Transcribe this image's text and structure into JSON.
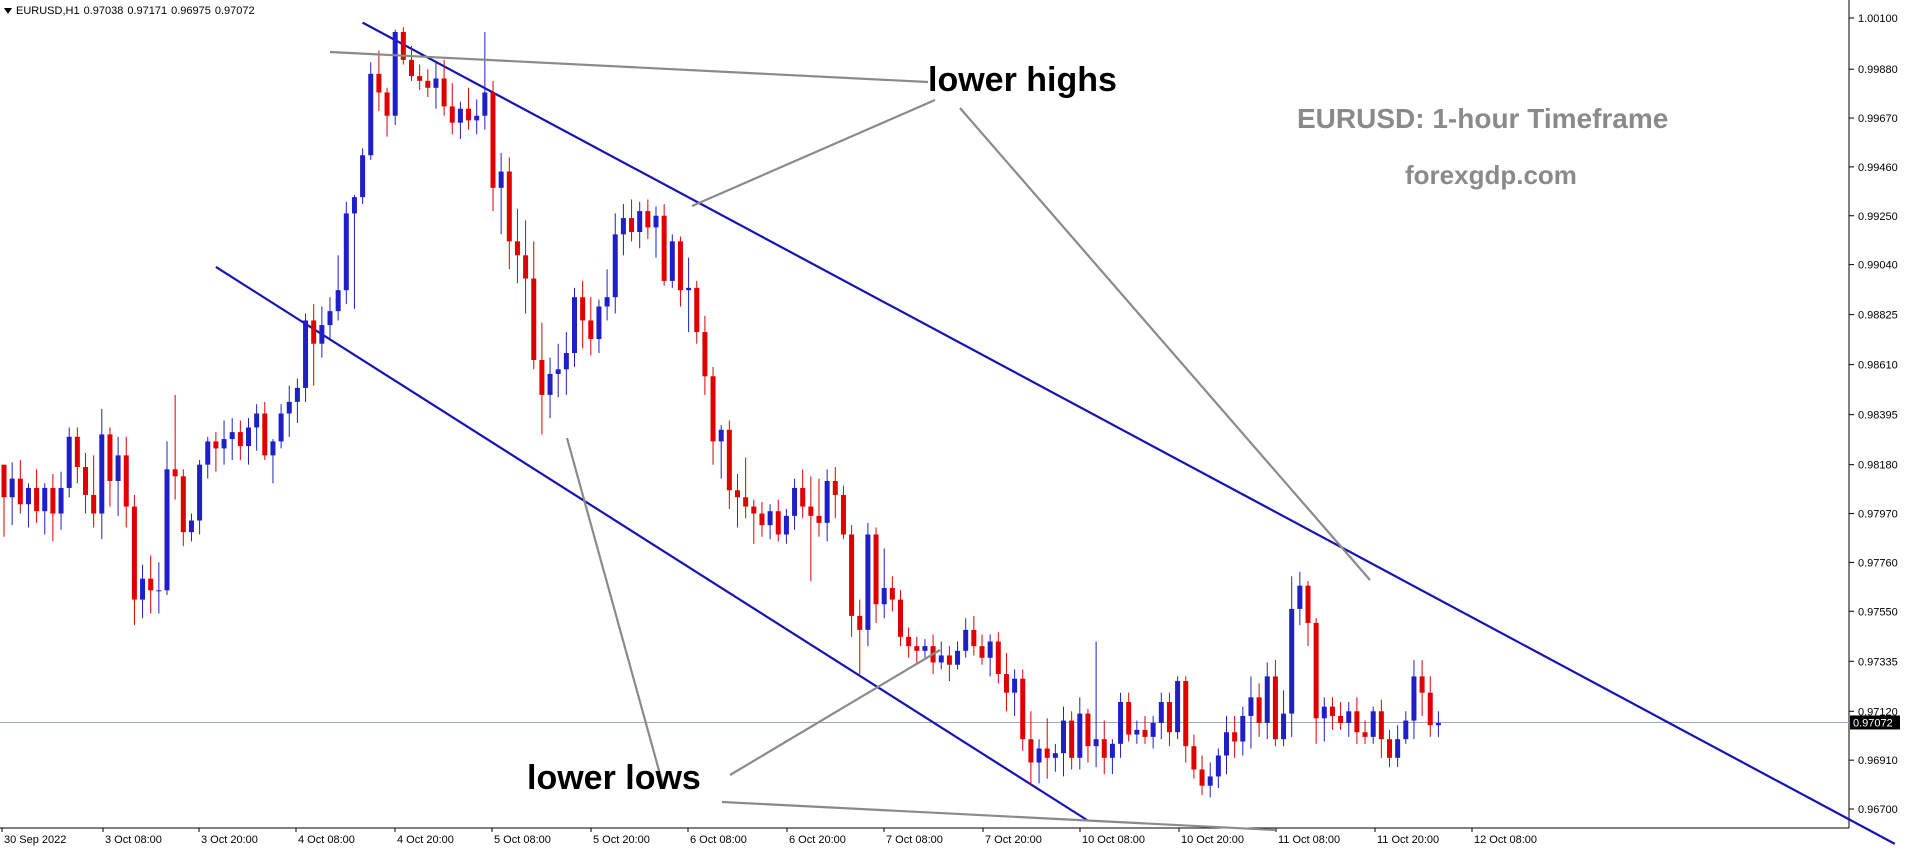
{
  "header": {
    "symbol": "EURUSD,H1",
    "open": "0.97038",
    "high": "0.97171",
    "low": "0.96975",
    "close": "0.97072"
  },
  "annotations": {
    "title": "EURUSD: 1-hour Timeframe",
    "site": "forexgdp.com",
    "lower_highs": "lower highs",
    "lower_lows": "lower lows"
  },
  "colors": {
    "bull": "#1f1fc8",
    "bear": "#e00000",
    "channel": "#1414b4",
    "pointer": "#8c8c8c",
    "grid_text": "#000000",
    "price_line": "#a0a8c0",
    "annotation_gray": "#8a8a8a"
  },
  "chart_data": {
    "type": "candlestick",
    "title": "EURUSD: 1-hour Timeframe",
    "symbol": "EURUSD",
    "timeframe": "H1",
    "current_price": 0.97072,
    "current_price_label": "0.97072",
    "y_ticks": [
      1.001,
      0.9988,
      0.9967,
      0.9946,
      0.9925,
      0.9904,
      0.98825,
      0.9861,
      0.98395,
      0.9818,
      0.9797,
      0.9776,
      0.9755,
      0.97335,
      0.9712,
      0.9691,
      0.967
    ],
    "y_tick_labels": [
      "1.00100",
      "0.99880",
      "0.99670",
      "0.99460",
      "0.99250",
      "0.99040",
      "0.98825",
      "0.98610",
      "0.98395",
      "0.98180",
      "0.97970",
      "0.97760",
      "0.97550",
      "0.97335",
      "0.97120",
      "0.96910",
      "0.96700"
    ],
    "x_tick_labels": [
      "30 Sep 2022",
      "3 Oct 08:00",
      "3 Oct 20:00",
      "4 Oct 08:00",
      "4 Oct 20:00",
      "5 Oct 08:00",
      "5 Oct 20:00",
      "6 Oct 08:00",
      "6 Oct 20:00",
      "7 Oct 08:00",
      "7 Oct 20:00",
      "10 Oct 08:00",
      "10 Oct 20:00",
      "11 Oct 08:00",
      "11 Oct 20:00",
      "12 Oct 08:00"
    ],
    "grid": false,
    "candles": [
      [
        0.9818,
        0.9816,
        0.9787,
        0.9804
      ],
      [
        0.9804,
        0.9819,
        0.9792,
        0.9812
      ],
      [
        0.9812,
        0.982,
        0.9797,
        0.9801
      ],
      [
        0.9801,
        0.981,
        0.9791,
        0.9808
      ],
      [
        0.9808,
        0.9816,
        0.9793,
        0.9798
      ],
      [
        0.9798,
        0.981,
        0.9788,
        0.9808
      ],
      [
        0.9808,
        0.9814,
        0.9785,
        0.9797
      ],
      [
        0.9797,
        0.9815,
        0.979,
        0.9808
      ],
      [
        0.9808,
        0.9834,
        0.9804,
        0.983
      ],
      [
        0.983,
        0.9834,
        0.981,
        0.9817
      ],
      [
        0.9817,
        0.9823,
        0.9797,
        0.9805
      ],
      [
        0.9805,
        0.9822,
        0.9791,
        0.9797
      ],
      [
        0.9797,
        0.9842,
        0.9786,
        0.9831
      ],
      [
        0.9831,
        0.9834,
        0.98,
        0.9811
      ],
      [
        0.9811,
        0.983,
        0.9796,
        0.9822
      ],
      [
        0.9822,
        0.983,
        0.9791,
        0.98
      ],
      [
        0.98,
        0.9805,
        0.9749,
        0.976
      ],
      [
        0.976,
        0.9775,
        0.9752,
        0.9769
      ],
      [
        0.9769,
        0.9779,
        0.9754,
        0.9764
      ],
      [
        0.9764,
        0.9776,
        0.9754,
        0.9764
      ],
      [
        0.9764,
        0.9828,
        0.9762,
        0.9816
      ],
      [
        0.9816,
        0.9848,
        0.9803,
        0.9813
      ],
      [
        0.9813,
        0.9816,
        0.9783,
        0.9789
      ],
      [
        0.9789,
        0.9797,
        0.9785,
        0.9794
      ],
      [
        0.9794,
        0.982,
        0.9788,
        0.9818
      ],
      [
        0.9818,
        0.983,
        0.9812,
        0.9828
      ],
      [
        0.9828,
        0.9832,
        0.9815,
        0.9825
      ],
      [
        0.9825,
        0.9837,
        0.9818,
        0.9829
      ],
      [
        0.9829,
        0.9838,
        0.982,
        0.9832
      ],
      [
        0.9832,
        0.9837,
        0.982,
        0.9826
      ],
      [
        0.9826,
        0.9838,
        0.9818,
        0.9834
      ],
      [
        0.9834,
        0.9844,
        0.9824,
        0.984
      ],
      [
        0.984,
        0.9845,
        0.982,
        0.9822
      ],
      [
        0.9822,
        0.9829,
        0.981,
        0.9828
      ],
      [
        0.9828,
        0.9844,
        0.9825,
        0.984
      ],
      [
        0.984,
        0.9852,
        0.983,
        0.9845
      ],
      [
        0.9845,
        0.9855,
        0.9836,
        0.9851
      ],
      [
        0.9851,
        0.9883,
        0.9845,
        0.988
      ],
      [
        0.988,
        0.9887,
        0.9852,
        0.987
      ],
      [
        0.987,
        0.9886,
        0.9864,
        0.9878
      ],
      [
        0.9878,
        0.989,
        0.9872,
        0.9884
      ],
      [
        0.9884,
        0.9908,
        0.988,
        0.9893
      ],
      [
        0.9893,
        0.9931,
        0.9887,
        0.9926
      ],
      [
        0.9926,
        0.9934,
        0.9885,
        0.9933
      ],
      [
        0.9933,
        0.9954,
        0.993,
        0.9951
      ],
      [
        0.9951,
        0.9991,
        0.9949,
        0.9986
      ],
      [
        0.9986,
        0.9996,
        0.997,
        0.9978
      ],
      [
        0.9978,
        0.998,
        0.9959,
        0.9968
      ],
      [
        0.9968,
        1.0005,
        0.9964,
        1.0004
      ],
      [
        1.0004,
        1.0006,
        0.999,
        0.9992
      ],
      [
        0.9992,
        0.9998,
        0.9983,
        0.9985
      ],
      [
        0.9985,
        0.999,
        0.9979,
        0.9983
      ],
      [
        0.9983,
        0.9988,
        0.9976,
        0.998
      ],
      [
        0.998,
        0.9991,
        0.9971,
        0.9984
      ],
      [
        0.9984,
        0.9992,
        0.9968,
        0.9972
      ],
      [
        0.9972,
        0.9982,
        0.996,
        0.9965
      ],
      [
        0.9965,
        0.9974,
        0.9958,
        0.9971
      ],
      [
        0.9971,
        0.998,
        0.9962,
        0.9966
      ],
      [
        0.9966,
        0.9975,
        0.996,
        0.9968
      ],
      [
        0.9968,
        1.0004,
        0.9962,
        0.9978
      ],
      [
        0.9978,
        0.9983,
        0.9927,
        0.9937
      ],
      [
        0.9937,
        0.9952,
        0.9917,
        0.9944
      ],
      [
        0.9944,
        0.995,
        0.9902,
        0.9914
      ],
      [
        0.9914,
        0.9928,
        0.9896,
        0.9908
      ],
      [
        0.9908,
        0.9923,
        0.9883,
        0.9898
      ],
      [
        0.9898,
        0.9914,
        0.9859,
        0.9863
      ],
      [
        0.9863,
        0.9879,
        0.9831,
        0.9848
      ],
      [
        0.9848,
        0.9864,
        0.9838,
        0.9857
      ],
      [
        0.9857,
        0.987,
        0.9847,
        0.9859
      ],
      [
        0.9859,
        0.9875,
        0.9848,
        0.9866
      ],
      [
        0.9866,
        0.9894,
        0.986,
        0.989
      ],
      [
        0.989,
        0.9897,
        0.9868,
        0.988
      ],
      [
        0.988,
        0.989,
        0.9865,
        0.9872
      ],
      [
        0.9872,
        0.9889,
        0.9866,
        0.9886
      ],
      [
        0.9886,
        0.9902,
        0.988,
        0.989
      ],
      [
        0.989,
        0.9926,
        0.9883,
        0.9917
      ],
      [
        0.9917,
        0.993,
        0.9908,
        0.9924
      ],
      [
        0.9924,
        0.9932,
        0.9914,
        0.9918
      ],
      [
        0.9918,
        0.9931,
        0.9911,
        0.9927
      ],
      [
        0.9927,
        0.9932,
        0.9915,
        0.992
      ],
      [
        0.992,
        0.9929,
        0.9907,
        0.9925
      ],
      [
        0.9925,
        0.993,
        0.9895,
        0.9897
      ],
      [
        0.9897,
        0.9917,
        0.9894,
        0.9914
      ],
      [
        0.9914,
        0.9916,
        0.9886,
        0.9893
      ],
      [
        0.9893,
        0.9907,
        0.9875,
        0.9894
      ],
      [
        0.9894,
        0.9897,
        0.987,
        0.9875
      ],
      [
        0.9875,
        0.9882,
        0.9848,
        0.9856
      ],
      [
        0.9856,
        0.986,
        0.9818,
        0.9828
      ],
      [
        0.9828,
        0.9835,
        0.9812,
        0.9833
      ],
      [
        0.9833,
        0.9837,
        0.9799,
        0.9807
      ],
      [
        0.9807,
        0.9814,
        0.9791,
        0.9804
      ],
      [
        0.9804,
        0.9821,
        0.9795,
        0.98
      ],
      [
        0.98,
        0.9803,
        0.9784,
        0.9797
      ],
      [
        0.9797,
        0.9802,
        0.9787,
        0.9792
      ],
      [
        0.9792,
        0.9801,
        0.9786,
        0.9798
      ],
      [
        0.9798,
        0.9803,
        0.9785,
        0.9788
      ],
      [
        0.9788,
        0.9799,
        0.9784,
        0.9796
      ],
      [
        0.9796,
        0.9812,
        0.979,
        0.9808
      ],
      [
        0.9808,
        0.9816,
        0.9795,
        0.98
      ],
      [
        0.98,
        0.9813,
        0.9768,
        0.9796
      ],
      [
        0.9796,
        0.9812,
        0.9787,
        0.9793
      ],
      [
        0.9793,
        0.9816,
        0.9785,
        0.9811
      ],
      [
        0.9811,
        0.9817,
        0.9795,
        0.9805
      ],
      [
        0.9805,
        0.9809,
        0.9786,
        0.9788
      ],
      [
        0.9788,
        0.9792,
        0.9744,
        0.9753
      ],
      [
        0.9753,
        0.976,
        0.9728,
        0.9747
      ],
      [
        0.9747,
        0.9793,
        0.974,
        0.9788
      ],
      [
        0.9788,
        0.9791,
        0.975,
        0.9758
      ],
      [
        0.9758,
        0.9782,
        0.9752,
        0.9765
      ],
      [
        0.9765,
        0.977,
        0.9755,
        0.976
      ],
      [
        0.976,
        0.9764,
        0.974,
        0.9744
      ],
      [
        0.9744,
        0.9748,
        0.9735,
        0.974
      ],
      [
        0.974,
        0.9744,
        0.9732,
        0.9738
      ],
      [
        0.9738,
        0.9743,
        0.9735,
        0.974
      ],
      [
        0.974,
        0.9745,
        0.9728,
        0.9733
      ],
      [
        0.9733,
        0.9742,
        0.973,
        0.9736
      ],
      [
        0.9736,
        0.974,
        0.9725,
        0.9732
      ],
      [
        0.9732,
        0.9742,
        0.973,
        0.9738
      ],
      [
        0.9738,
        0.9752,
        0.9735,
        0.9747
      ],
      [
        0.9747,
        0.9753,
        0.9736,
        0.974
      ],
      [
        0.974,
        0.9745,
        0.9732,
        0.9735
      ],
      [
        0.9735,
        0.9745,
        0.9727,
        0.9742
      ],
      [
        0.9742,
        0.9746,
        0.9724,
        0.9728
      ],
      [
        0.9728,
        0.9737,
        0.9712,
        0.972
      ],
      [
        0.972,
        0.973,
        0.971,
        0.9726
      ],
      [
        0.9726,
        0.973,
        0.9695,
        0.97
      ],
      [
        0.97,
        0.9712,
        0.968,
        0.969
      ],
      [
        0.969,
        0.97,
        0.9681,
        0.9696
      ],
      [
        0.9696,
        0.9709,
        0.9683,
        0.9692
      ],
      [
        0.9692,
        0.9698,
        0.9686,
        0.9694
      ],
      [
        0.9694,
        0.9714,
        0.9684,
        0.9708
      ],
      [
        0.9708,
        0.9712,
        0.9687,
        0.9692
      ],
      [
        0.9692,
        0.9718,
        0.9687,
        0.9711
      ],
      [
        0.9711,
        0.9713,
        0.969,
        0.9697
      ],
      [
        0.9697,
        0.9742,
        0.9688,
        0.97
      ],
      [
        0.97,
        0.9708,
        0.9685,
        0.9692
      ],
      [
        0.9692,
        0.97,
        0.9685,
        0.9698
      ],
      [
        0.9698,
        0.972,
        0.9692,
        0.9716
      ],
      [
        0.9716,
        0.972,
        0.9699,
        0.9702
      ],
      [
        0.9702,
        0.9708,
        0.9698,
        0.9704
      ],
      [
        0.9704,
        0.971,
        0.9698,
        0.9701
      ],
      [
        0.9701,
        0.971,
        0.9696,
        0.9707
      ],
      [
        0.9707,
        0.972,
        0.97,
        0.9716
      ],
      [
        0.9716,
        0.972,
        0.9697,
        0.9703
      ],
      [
        0.9703,
        0.9727,
        0.97,
        0.9725
      ],
      [
        0.9725,
        0.9727,
        0.969,
        0.9697
      ],
      [
        0.9697,
        0.9702,
        0.9683,
        0.9687
      ],
      [
        0.9687,
        0.9693,
        0.9676,
        0.968
      ],
      [
        0.968,
        0.969,
        0.9675,
        0.9684
      ],
      [
        0.9684,
        0.9696,
        0.9679,
        0.9693
      ],
      [
        0.9693,
        0.971,
        0.9685,
        0.9703
      ],
      [
        0.9703,
        0.971,
        0.9692,
        0.9699
      ],
      [
        0.9699,
        0.9714,
        0.9693,
        0.971
      ],
      [
        0.971,
        0.9727,
        0.9696,
        0.9718
      ],
      [
        0.9718,
        0.9724,
        0.9701,
        0.9707
      ],
      [
        0.9707,
        0.9733,
        0.97,
        0.9727
      ],
      [
        0.9727,
        0.9734,
        0.9697,
        0.97
      ],
      [
        0.97,
        0.9721,
        0.9697,
        0.9711
      ],
      [
        0.9711,
        0.977,
        0.9701,
        0.9756
      ],
      [
        0.9756,
        0.9772,
        0.9749,
        0.9766
      ],
      [
        0.9766,
        0.9768,
        0.974,
        0.975
      ],
      [
        0.975,
        0.9752,
        0.9698,
        0.9709
      ],
      [
        0.9709,
        0.9718,
        0.9699,
        0.9714
      ],
      [
        0.9714,
        0.9718,
        0.9704,
        0.971
      ],
      [
        0.971,
        0.9716,
        0.9704,
        0.9707
      ],
      [
        0.9707,
        0.9716,
        0.9701,
        0.9712
      ],
      [
        0.9712,
        0.9718,
        0.9698,
        0.9703
      ],
      [
        0.9703,
        0.9708,
        0.9698,
        0.9701
      ],
      [
        0.9701,
        0.9714,
        0.9698,
        0.9712
      ],
      [
        0.9712,
        0.9717,
        0.9692,
        0.97
      ],
      [
        0.97,
        0.9704,
        0.9688,
        0.9692
      ],
      [
        0.9692,
        0.9706,
        0.9688,
        0.97
      ],
      [
        0.97,
        0.9712,
        0.9698,
        0.9708
      ],
      [
        0.9708,
        0.9734,
        0.97,
        0.9727
      ],
      [
        0.9727,
        0.9734,
        0.971,
        0.972
      ],
      [
        0.972,
        0.9727,
        0.9701,
        0.9706
      ],
      [
        0.9706,
        0.9712,
        0.9701,
        0.9707
      ]
    ],
    "channel_lines": [
      {
        "name": "upper",
        "from_index": 44,
        "from_price": 1.0008,
        "to_index": 232,
        "to_price": 0.9655
      },
      {
        "name": "lower",
        "from_index": 26,
        "from_price": 0.9903,
        "to_index": 133,
        "to_price": 0.9665
      }
    ]
  }
}
